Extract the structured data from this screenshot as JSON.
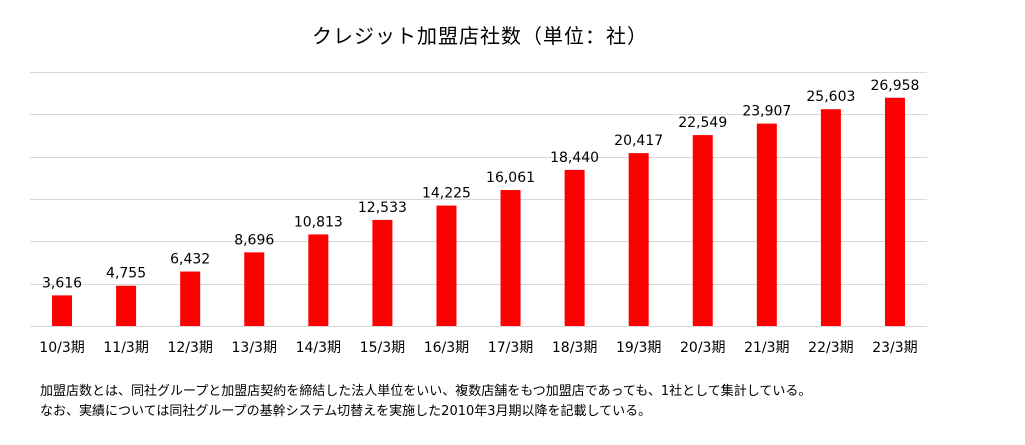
{
  "chart_data": {
    "type": "bar",
    "title": "クレジット加盟店社数（単位：社）",
    "categories": [
      "10/3期",
      "11/3期",
      "12/3期",
      "13/3期",
      "14/3期",
      "15/3期",
      "16/3期",
      "17/3期",
      "18/3期",
      "19/3期",
      "20/3期",
      "21/3期",
      "22/3期",
      "23/3期"
    ],
    "values": [
      3616,
      4755,
      6432,
      8696,
      10813,
      12533,
      14225,
      16061,
      18440,
      20417,
      22549,
      23907,
      25603,
      26958
    ],
    "data_labels": [
      "3,616",
      "4,755",
      "6,432",
      "8,696",
      "10,813",
      "12,533",
      "14,225",
      "16,061",
      "18,440",
      "20,417",
      "22,549",
      "23,907",
      "25,603",
      "26,958"
    ],
    "xlabel": "",
    "ylabel": "",
    "ylim": [
      0,
      30000
    ],
    "grid": true,
    "legend": "none",
    "bar_color": "#ff0000"
  },
  "footnotes": [
    "加盟店数とは、同社グループと加盟店契約を締結した法人単位をいい、複数店舗をもつ加盟店であっても、1社として集計している。",
    "なお、実績については同社グループの基幹システム切替えを実施した2010年3月期以降を記載している。"
  ]
}
